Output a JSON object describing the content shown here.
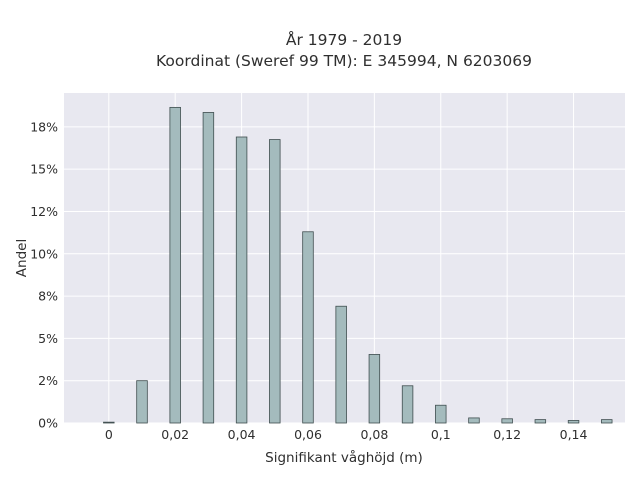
{
  "chart_data": {
    "type": "bar",
    "title_lines": [
      "År 1979 - 2019",
      "Koordinat (Sweref 99 TM): E 345994, N 6203069"
    ],
    "xlabel": "Signifikant våghöjd (m)",
    "ylabel": "Andel",
    "x": [
      0,
      0.01,
      0.02,
      0.03,
      0.04,
      0.05,
      0.06,
      0.07,
      0.08,
      0.09,
      0.1,
      0.11,
      0.12,
      0.13,
      0.14,
      0.15
    ],
    "values": [
      0.05,
      2.5,
      18.65,
      18.35,
      16.9,
      16.75,
      11.3,
      6.9,
      4.05,
      2.2,
      1.05,
      0.3,
      0.25,
      0.2,
      0.15,
      0.2
    ],
    "xlim": [
      -0.0135,
      0.1555
    ],
    "ylim": [
      0,
      19.5
    ],
    "xticks": [
      0,
      0.02,
      0.04,
      0.06,
      0.08,
      0.1,
      0.12,
      0.14
    ],
    "xtick_labels": [
      "0",
      "0,02",
      "0,04",
      "0,06",
      "0,08",
      "0,1",
      "0,12",
      "0,14"
    ],
    "yticks": [
      0,
      2.5,
      5,
      7.5,
      10,
      12.5,
      15,
      17.5
    ],
    "ytick_labels": [
      "0%",
      "2%",
      "5%",
      "8%",
      "10%",
      "12%",
      "15%",
      "18%"
    ],
    "grid": true,
    "colors": {
      "bar_fill": "#a4bbbd",
      "bar_edge": "#3f4e4f",
      "plot_bg": "#e8e8f0",
      "grid": "#ffffff"
    }
  }
}
